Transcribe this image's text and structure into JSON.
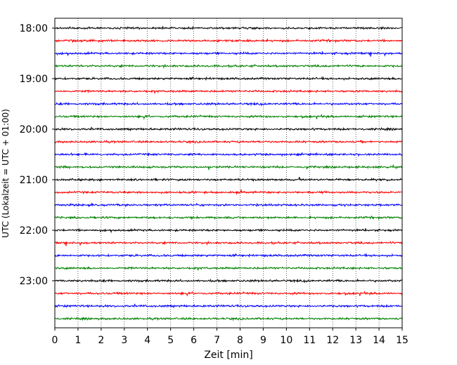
{
  "chart_data": {
    "type": "line",
    "title": "",
    "xlabel": "Zeit  [min]",
    "ylabel": "UTC (Lokalzeit = UTC + 01:00)",
    "xlim": [
      0,
      15
    ],
    "x_ticks": [
      0,
      1,
      2,
      3,
      4,
      5,
      6,
      7,
      8,
      9,
      10,
      11,
      12,
      13,
      14,
      15
    ],
    "y_ticks": [
      "18:00",
      "19:00",
      "20:00",
      "21:00",
      "22:00",
      "23:00"
    ],
    "grid": "vertical dotted lines",
    "legend": "none",
    "start_time": "18:00",
    "trace_interval_min": 15,
    "trace_count": 24,
    "trace_colors": [
      "#000000",
      "#ff0000",
      "#0000ff",
      "#008000"
    ],
    "trace_noise_amplitude": 0.08
  }
}
